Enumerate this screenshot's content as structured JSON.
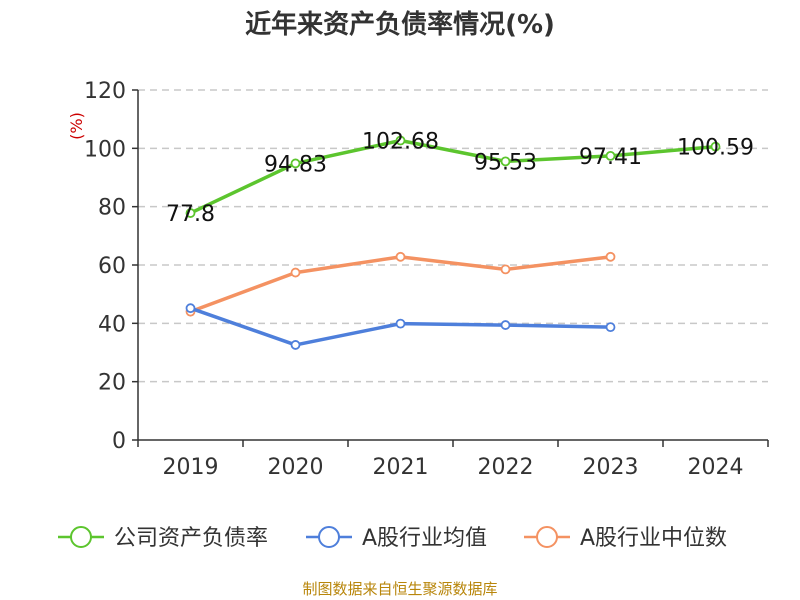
{
  "footer": "制图数据来自恒生聚源数据库",
  "chart_data": {
    "type": "line",
    "title": "近年来资产负债率情况(%)",
    "ylabel": "(%)",
    "xlabel": "",
    "categories": [
      "2019",
      "2020",
      "2021",
      "2022",
      "2023",
      "2024"
    ],
    "ylim": [
      0,
      120
    ],
    "yticks": [
      0,
      20,
      40,
      60,
      80,
      100,
      120
    ],
    "grid": true,
    "legend_position": "bottom",
    "series": [
      {
        "name": "公司资产负债率",
        "color": "#5cc52e",
        "values": [
          77.8,
          94.83,
          102.68,
          95.53,
          97.41,
          100.59
        ],
        "labels": [
          "77.8",
          "94.83",
          "102.68",
          "95.53",
          "97.41",
          "100.59"
        ]
      },
      {
        "name": "A股行业均值",
        "color": "#4e7fdb",
        "values": [
          45.2,
          32.6,
          39.9,
          39.4,
          38.7,
          null
        ]
      },
      {
        "name": "A股行业中位数",
        "color": "#f49262",
        "values": [
          44.0,
          57.4,
          62.8,
          58.5,
          62.8,
          null
        ]
      }
    ]
  }
}
